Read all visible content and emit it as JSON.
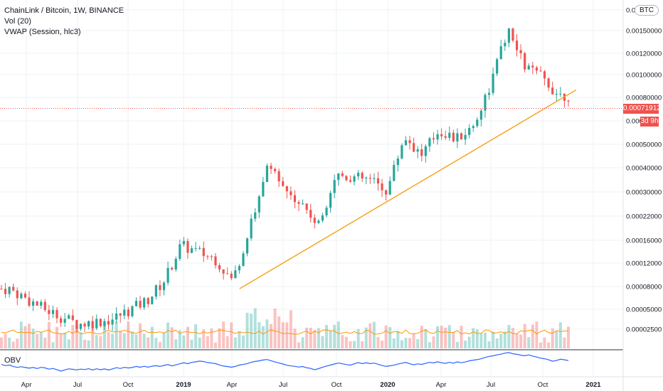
{
  "header": {
    "title": "ChainLink / Bitcoin, 1W, BINANCE",
    "indicator_vol": "Vol (20)",
    "indicator_vwap": "VWAP (Session, hlc3)",
    "currency": "BTC"
  },
  "obv_pane": {
    "label": "OBV"
  },
  "price_axis": {
    "labels": [
      "0.0017",
      "0.00150000",
      "0.00120000",
      "0.00100000",
      "0.00080000",
      "0.0006",
      "0.00050000",
      "0.00040000",
      "0.00030000",
      "0.00022000",
      "0.00016000",
      "0.00012000",
      "0.00008000",
      "0.00005000",
      "0.00002500"
    ],
    "last_price": "0.00071912",
    "countdown": "3d 9h"
  },
  "time_axis": {
    "labels": [
      "Apr",
      "Jul",
      "Oct",
      "2019",
      "Apr",
      "Jul",
      "Oct",
      "2020",
      "Apr",
      "Jul",
      "Oct",
      "2021"
    ]
  },
  "colors": {
    "up": "#26a69a",
    "down": "#ef5350",
    "trendline": "#f5a623",
    "vwap": "#ff9800",
    "obv": "#2962ff",
    "grid": "#eef0f3"
  },
  "chart_data": {
    "type": "candlestick",
    "timeframe": "1W",
    "y_scale": "log",
    "last_price": 0.00071912,
    "price_series_sampled": [
      {
        "date": "2018-03",
        "close": 7.8e-05
      },
      {
        "date": "2018-05",
        "close": 6.2e-05
      },
      {
        "date": "2018-07",
        "close": 5.2e-05
      },
      {
        "date": "2018-09",
        "close": 5.5e-05
      },
      {
        "date": "2018-11",
        "close": 6.8e-05
      },
      {
        "date": "2018-12",
        "close": 8.5e-05
      },
      {
        "date": "2019-01",
        "close": 0.000128
      },
      {
        "date": "2019-03",
        "close": 0.00011
      },
      {
        "date": "2019-04",
        "close": 8.5e-05
      },
      {
        "date": "2019-05",
        "close": 0.000155
      },
      {
        "date": "2019-06",
        "close": 0.00031
      },
      {
        "date": "2019-08",
        "close": 0.00021
      },
      {
        "date": "2019-09",
        "close": 0.00016
      },
      {
        "date": "2019-10",
        "close": 0.00029
      },
      {
        "date": "2019-12",
        "close": 0.00027
      },
      {
        "date": "2020-01",
        "close": 0.00024
      },
      {
        "date": "2020-02",
        "close": 0.00045
      },
      {
        "date": "2020-03",
        "close": 0.00036
      },
      {
        "date": "2020-04",
        "close": 0.00048
      },
      {
        "date": "2020-05",
        "close": 0.00043
      },
      {
        "date": "2020-06",
        "close": 0.0005
      },
      {
        "date": "2020-07",
        "close": 0.0008
      },
      {
        "date": "2020-08",
        "close": 0.0015
      },
      {
        "date": "2020-09",
        "close": 0.001
      },
      {
        "date": "2020-10",
        "close": 0.00088
      },
      {
        "date": "2020-11",
        "close": 0.000719
      }
    ],
    "trendline": {
      "from": {
        "date": "2019-04",
        "price": 7.8e-05
      },
      "to": {
        "date": "2020-12",
        "price": 0.00076
      }
    }
  }
}
